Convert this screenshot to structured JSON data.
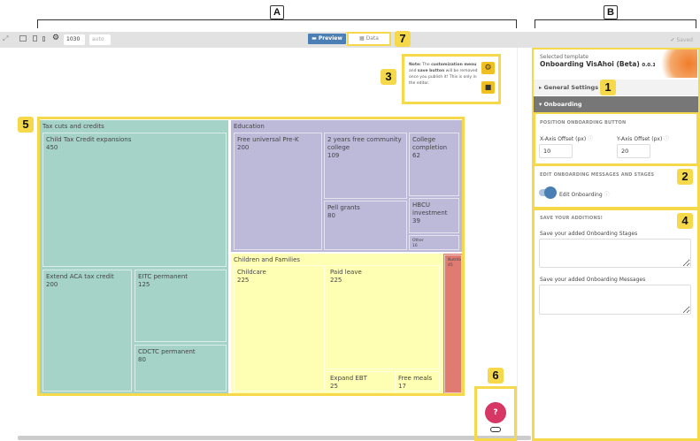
{
  "annotations": {
    "A": "A",
    "B": "B",
    "n1": "1",
    "n2": "2",
    "n3": "3",
    "n4": "4",
    "n5": "5",
    "n6": "6",
    "n7": "7"
  },
  "toolbar": {
    "width_value": "1030",
    "height_placeholder": "auto",
    "preview_label": "Preview",
    "data_label": "Data",
    "saved_label": "✔ Saved"
  },
  "note": {
    "prefix": "Note:",
    "t1": " The ",
    "b1": "customization menu",
    "t2": " and ",
    "b2": "save button",
    "t3": " will be removed once you publish it! This is only in the editor."
  },
  "panel": {
    "selected_template_label": "Selected template",
    "template_name": "Onboarding VisAhoi (Beta)",
    "version": "0.0.15",
    "general_settings": "General Settings",
    "onboarding": "Onboarding",
    "position_heading": "POSITION ONBOARDING BUTTON",
    "x_label": "X-Axis Offset (px)",
    "x_value": "10",
    "y_label": "Y-Axis Offset (px)",
    "y_value": "20",
    "edit_heading": "EDIT ONBOARDING MESSAGES AND STAGES",
    "edit_toggle_label": "Edit Onboarding",
    "edit_toggle_on": true,
    "save_heading": "SAVE YOUR ADDITIONS!",
    "stages_label": "Save your added Onboarding Stages",
    "messages_label": "Save your added Onboarding Messages"
  },
  "colors": {
    "teal": "#a6d3c8",
    "purple": "#bdb9d9",
    "yellow": "#ffffb3",
    "red": "#e07b72",
    "accent": "#4a7fb5",
    "help": "#d63764",
    "highlight": "#f5d94a"
  },
  "chart_data": {
    "type": "treemap",
    "groups": [
      {
        "name": "Tax cuts and credits",
        "items": [
          {
            "name": "Child Tax Credit expansions",
            "value": 450
          },
          {
            "name": "Extend ACA tax credit",
            "value": 200
          },
          {
            "name": "EITC permanent",
            "value": 125
          },
          {
            "name": "CDCTC permanent",
            "value": 80
          }
        ]
      },
      {
        "name": "Education",
        "items": [
          {
            "name": "Free universal Pre-K",
            "value": 200
          },
          {
            "name": "2 years free community college",
            "value": 109
          },
          {
            "name": "Pell grants",
            "value": 80
          },
          {
            "name": "College completion",
            "value": 62
          },
          {
            "name": "HBCU investment",
            "value": 39
          },
          {
            "name": "Other",
            "value": 16
          }
        ]
      },
      {
        "name": "Children and Families",
        "items": [
          {
            "name": "Childcare",
            "value": 225
          },
          {
            "name": "Paid leave",
            "value": 225
          },
          {
            "name": "Expand EBT",
            "value": 25
          },
          {
            "name": "Free meals",
            "value": 17
          }
        ]
      },
      {
        "name": "Nutrition",
        "items": [
          {
            "name": "Nutrition",
            "value": 45
          }
        ]
      }
    ]
  },
  "help_button": "?"
}
